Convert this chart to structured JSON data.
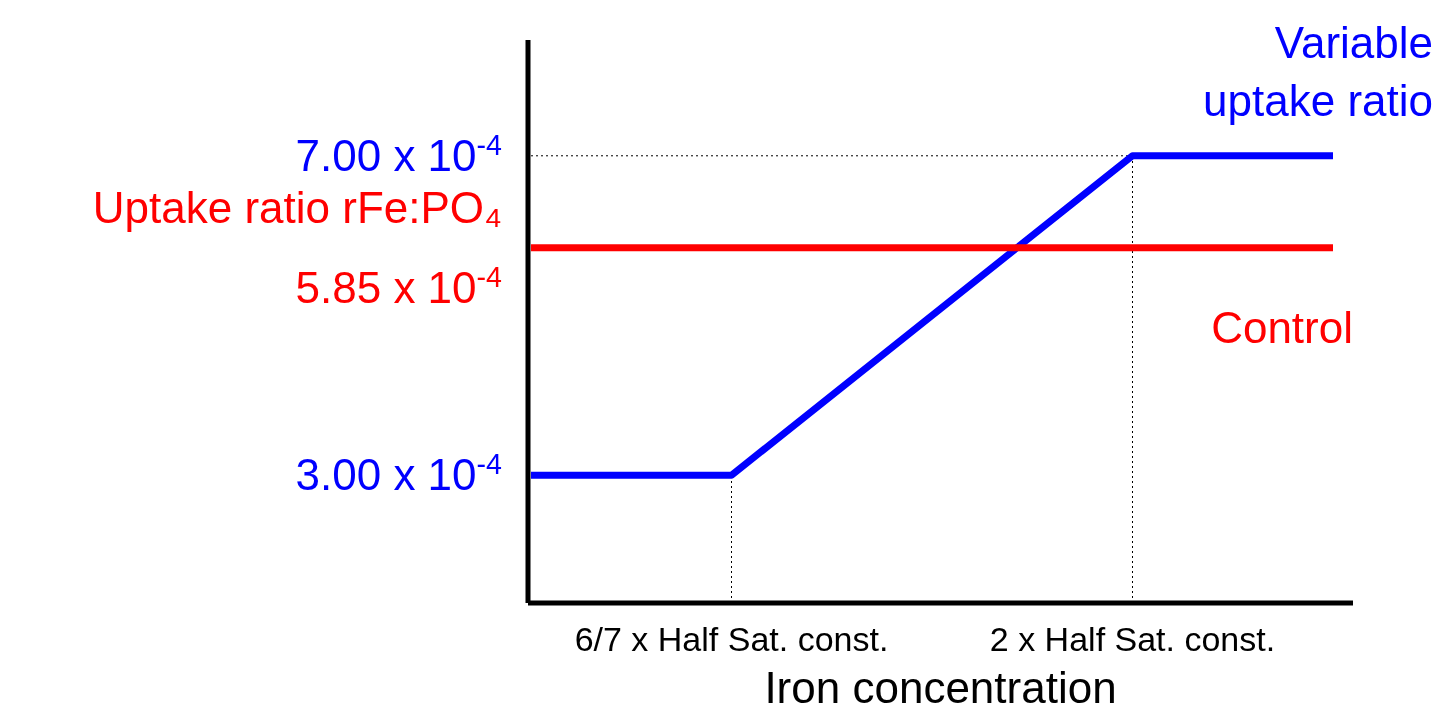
{
  "chart_data": {
    "type": "line",
    "xlabel": "Iron concentration",
    "categories": [
      null,
      "6/7 x Half Sat. const.",
      null,
      "2 x Half Sat. const.",
      null
    ],
    "ylim": [
      0.00014,
      0.000845
    ],
    "yticks": [
      {
        "value": 0.0003,
        "label": "3.00 x 10$^{-4}$"
      },
      {
        "value": 0.000585,
        "label": "Uptake ratio rFe:PO₄\n5.85 x 10$^{-4}$"
      },
      {
        "value": 0.0007,
        "label": "7.00 x 10$^{-4}$"
      }
    ],
    "series": [
      {
        "name": "Variable\nuptake ratio",
        "color": "#0000ff",
        "values": [
          0.0003,
          0.0003,
          0.0005,
          0.0007,
          0.0007
        ]
      },
      {
        "name": "Control",
        "color": "#ff0000",
        "values": [
          0.000585,
          0.000585,
          0.000585,
          0.000585,
          0.000585
        ]
      }
    ],
    "ref_lines": [
      {
        "axis": "x",
        "value": "6/7 x Half Sat. const.",
        "color": "#000000",
        "line_style": "dotted"
      },
      {
        "axis": "x",
        "value": "2 x Half Sat. const.",
        "color": "#000000",
        "line_style": "dotted"
      },
      {
        "axis": "y",
        "value": 0.0007,
        "color": "#000000",
        "line_style": "dotted"
      }
    ],
    "grid": false,
    "legend": false,
    "marker": "none",
    "line_style": "solid"
  }
}
